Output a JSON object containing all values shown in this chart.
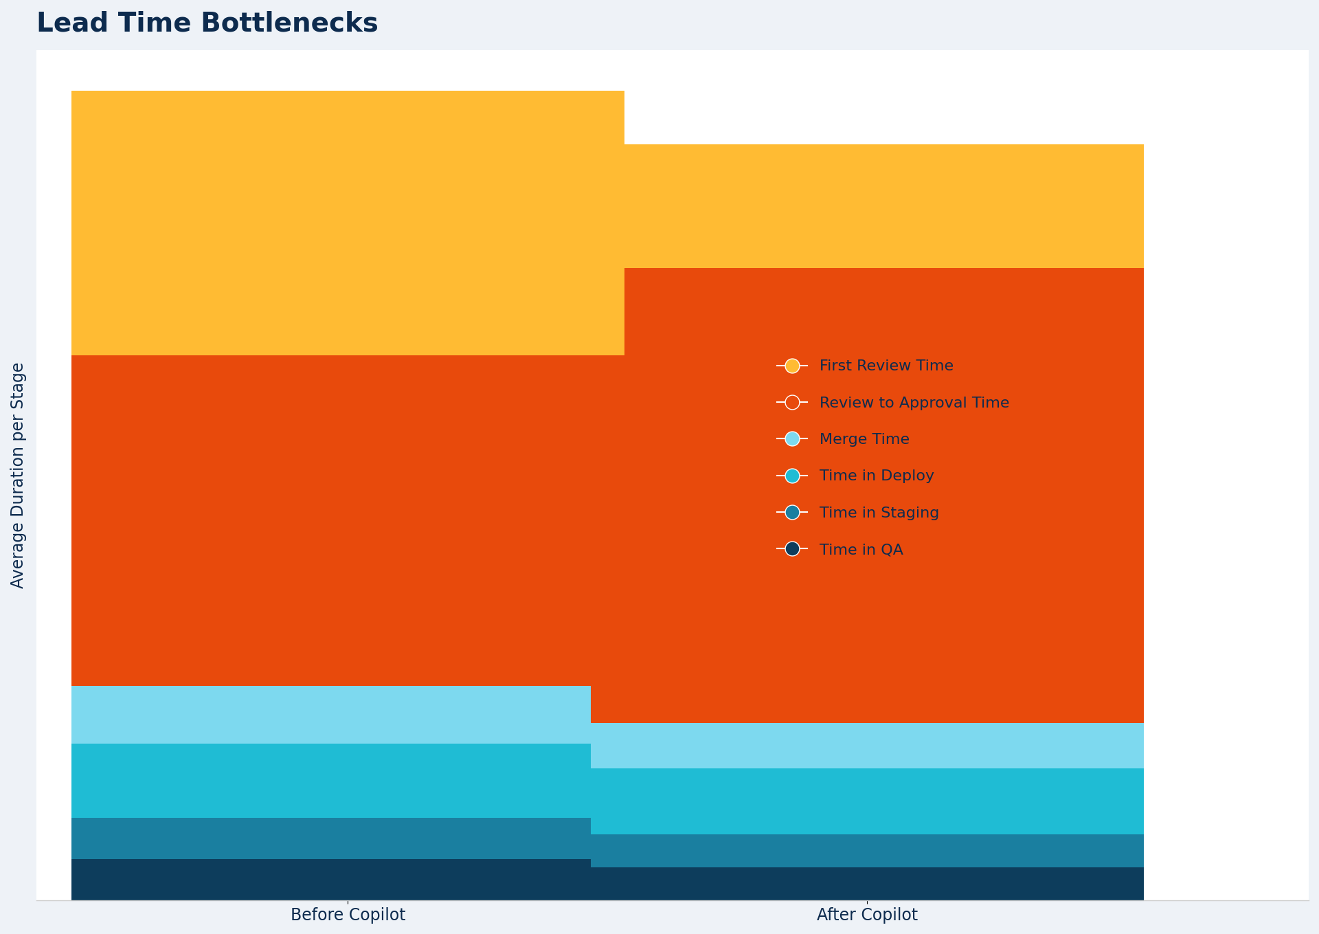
{
  "title": "Lead Time Bottlenecks",
  "ylabel": "Average Duration per Stage",
  "categories": [
    "Before Copilot",
    "After Copilot"
  ],
  "segments": [
    {
      "label": "First Review Time",
      "color": "#FFBB33",
      "values": [
        3.2,
        1.5
      ]
    },
    {
      "label": "Review to Approval Time",
      "color": "#E84A0C",
      "values": [
        4.0,
        5.5
      ]
    },
    {
      "label": "Merge Time",
      "color": "#7DD9EF",
      "values": [
        0.7,
        0.55
      ]
    },
    {
      "label": "Time in Deploy",
      "color": "#1FBCD4",
      "values": [
        0.9,
        0.8
      ]
    },
    {
      "label": "Time in Staging",
      "color": "#1A7FA0",
      "values": [
        0.5,
        0.4
      ]
    },
    {
      "label": "Time in QA",
      "color": "#0D3D5C",
      "values": [
        0.5,
        0.4
      ]
    }
  ],
  "title_color": "#0D2B4E",
  "ylabel_color": "#0D2B4E",
  "xlabel_color": "#0D2B4E",
  "background_color": "#FFFFFF",
  "figure_background": "#EEF2F7",
  "title_fontsize": 28,
  "label_fontsize": 17,
  "legend_fontsize": 16,
  "tick_fontsize": 17
}
